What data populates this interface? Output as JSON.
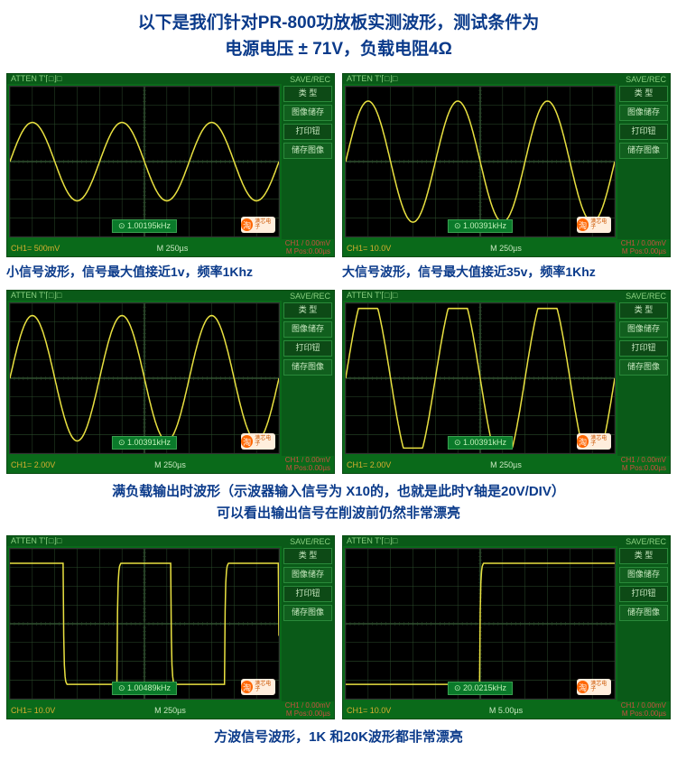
{
  "header": {
    "line1": "以下是我们针对PR-800功放板实测波形，测试条件为",
    "line2": "电源电压 ± 71V，负载电阻4Ω"
  },
  "scope_common": {
    "top_left": "ATTEN T'⌈□⌋□",
    "top_right": "SAVE/REC",
    "side": {
      "type_label": "类 型",
      "save_image": "图像储存",
      "print_btn": "打印钮",
      "save_image2": "储存图像"
    },
    "watermark_tao": "淘",
    "watermark_text": "港芯电子"
  },
  "scopes": [
    {
      "freq": "1.00195kHz",
      "ch": "CH1= 500mV",
      "m": "M 250µs",
      "r1": "CH1 / 0.00mV",
      "r2": "M Pos:0.00µs",
      "wave": "sine",
      "amplitude": 0.55,
      "periods": 3,
      "clip": 0
    },
    {
      "freq": "1.00391kHz",
      "ch": "CH1= 10.0V",
      "m": "M 250µs",
      "r1": "CH1 / 0.00mV",
      "r2": "M Pos:0.00µs",
      "wave": "sine",
      "amplitude": 0.85,
      "periods": 3,
      "clip": 0
    },
    {
      "freq": "1.00391kHz",
      "ch": "CH1= 2.00V",
      "m": "M 250µs",
      "r1": "CH1 / 0.00mV",
      "r2": "M Pos:0.00µs",
      "wave": "sine",
      "amplitude": 0.88,
      "periods": 3,
      "clip": 0
    },
    {
      "freq": "1.00391kHz",
      "ch": "CH1= 2.00V",
      "m": "M 250µs",
      "r1": "CH1 / 0.00mV",
      "r2": "M Pos:0.00µs",
      "wave": "sine",
      "amplitude": 0.98,
      "periods": 3,
      "clip": 0.78
    },
    {
      "freq": "1.00489kHz",
      "ch": "CH1= 10.0V",
      "m": "M 250µs",
      "r1": "CH1 / 0.00mV",
      "r2": "M Pos:0.00µs",
      "wave": "square",
      "amplitude": 0.85,
      "periods": 2.5,
      "clip": 0
    },
    {
      "freq": "20.0215kHz",
      "ch": "CH1= 10.0V",
      "m": "M 5.00µs",
      "r1": "CH1 / 0.00mV",
      "r2": "M Pos:0.00µs",
      "wave": "square",
      "amplitude": 0.85,
      "periods": 0.9,
      "phase": 0.55,
      "clip": 0
    }
  ],
  "captions": {
    "row1_left": "小信号波形，信号最大值接近1v，频率1Khz",
    "row1_right": "大信号波形，信号最大值接近35v，频率1Khz",
    "row2": "满负载输出时波形（示波器输入信号为 X10的，也就是此时Y轴是20V/DIV）\n可以看出输出信号在削波前仍然非常漂亮",
    "row3": "方波信号波形，1K 和20K波形都非常漂亮"
  },
  "colors": {
    "title": "#0a3a8a",
    "scope_bg": "#0a6a1a",
    "plot_bg": "#000000",
    "wave": "#e8e040",
    "grid": "#2a4a2a"
  }
}
